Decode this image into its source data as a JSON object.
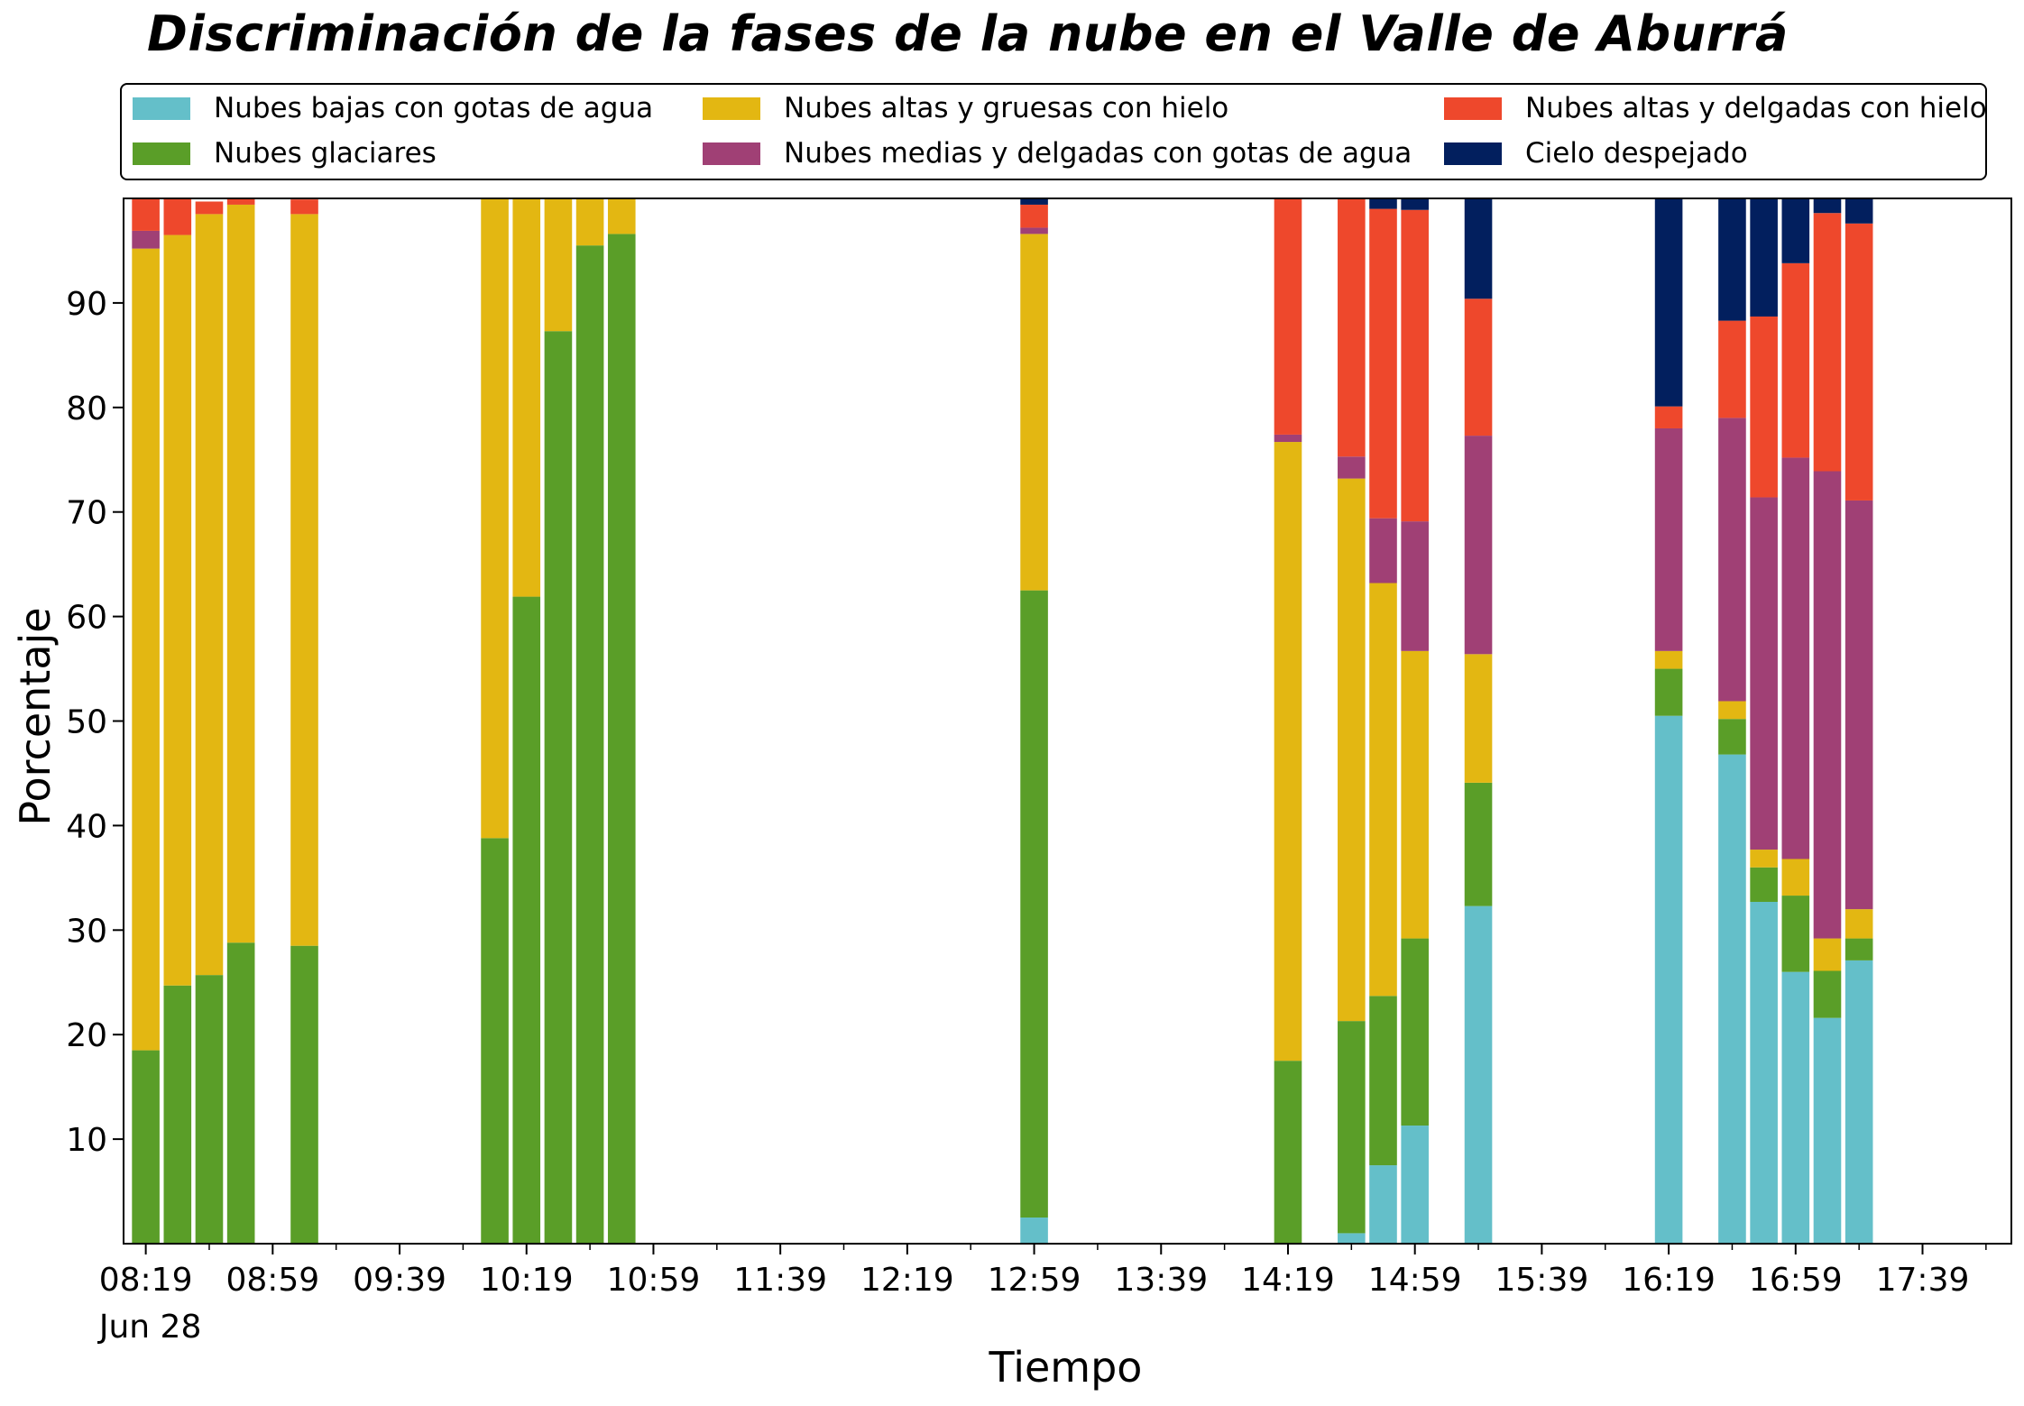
{
  "chart_data": {
    "type": "bar",
    "stacked": true,
    "title": "Discriminación de la fases de la nube en el Valle de Aburrá",
    "xlabel": "Tiempo",
    "ylabel": "Porcentaje",
    "date_label": "Jun 28",
    "ylim": [
      0,
      100
    ],
    "xlim": [
      "08:12",
      "18:07"
    ],
    "bar_width_minutes": 8.7,
    "y_ticks": [
      10,
      20,
      30,
      40,
      50,
      60,
      70,
      80,
      90
    ],
    "x_tick_labels": [
      "08:19",
      "08:59",
      "09:39",
      "10:19",
      "10:59",
      "11:39",
      "12:19",
      "12:59",
      "13:39",
      "14:19",
      "14:59",
      "15:39",
      "16:19",
      "16:59",
      "17:39"
    ],
    "x_minor_ticks": [
      "08:39",
      "09:19",
      "09:59",
      "10:39",
      "11:19",
      "11:59",
      "12:39",
      "13:19",
      "13:59",
      "14:39",
      "15:19",
      "15:59",
      "16:39",
      "17:19",
      "17:59"
    ],
    "grid": false,
    "legend_position": "top",
    "series": [
      {
        "name": "Nubes bajas con gotas de agua",
        "color": "#64bfc9",
        "values": [
          0,
          0,
          0,
          0,
          0,
          0,
          0,
          0,
          0,
          0,
          2.5,
          0,
          1,
          7.5,
          11.3,
          32.3,
          50.5,
          46.8,
          32.7,
          26,
          21.6,
          27.1
        ]
      },
      {
        "name": "Nubes glaciares",
        "color": "#5a9e28",
        "values": [
          18.5,
          24.7,
          25.7,
          28.8,
          28.5,
          38.8,
          61.9,
          87.3,
          95.5,
          96.6,
          60.0,
          17.5,
          20.3,
          16.2,
          17.9,
          11.8,
          4.5,
          3.4,
          3.3,
          7.3,
          4.5,
          2.1
        ]
      },
      {
        "name": "Nubes altas y gruesas con hielo",
        "color": "#e3b712",
        "values": [
          76.7,
          71.8,
          72.8,
          70.6,
          70.0,
          61.2,
          38.1,
          12.7,
          4.5,
          3.4,
          34.1,
          59.2,
          51.9,
          39.5,
          27.5,
          12.3,
          1.7,
          1.7,
          1.7,
          3.5,
          3.1,
          2.8
        ]
      },
      {
        "name": "Nubes medias y delgadas con gotas de agua",
        "color": "#a04075",
        "values": [
          1.7,
          0,
          0,
          0,
          0,
          0,
          0,
          0,
          0,
          0,
          0.6,
          0.7,
          2.1,
          6.2,
          12.4,
          20.9,
          21.3,
          27.1,
          33.7,
          38.4,
          44.7,
          39.1
        ]
      },
      {
        "name": "Nubes altas y delgadas con hielo",
        "color": "#ee482c",
        "values": [
          3.1,
          3.5,
          1.2,
          0.6,
          1.4,
          0,
          0,
          0,
          0,
          0,
          2.2,
          22.6,
          24.7,
          29.6,
          29.8,
          13.1,
          2.1,
          9.3,
          17.3,
          18.6,
          24.7,
          26.5
        ]
      },
      {
        "name": "Cielo despejado",
        "color": "#021f5e",
        "values": [
          0,
          0,
          0,
          0,
          0,
          0,
          0,
          0,
          0,
          0,
          0.6,
          0,
          0,
          1,
          1.1,
          9.6,
          19.9,
          11.7,
          11.3,
          6.2,
          1.4,
          2.4
        ]
      }
    ],
    "x": [
      "08:19",
      "08:29",
      "08:39",
      "08:49",
      "09:09",
      "10:09",
      "10:19",
      "10:29",
      "10:39",
      "10:49",
      "12:59",
      "14:19",
      "14:39",
      "14:49",
      "14:59",
      "15:19",
      "16:19",
      "16:39",
      "16:49",
      "16:59",
      "17:09",
      "17:19"
    ]
  }
}
